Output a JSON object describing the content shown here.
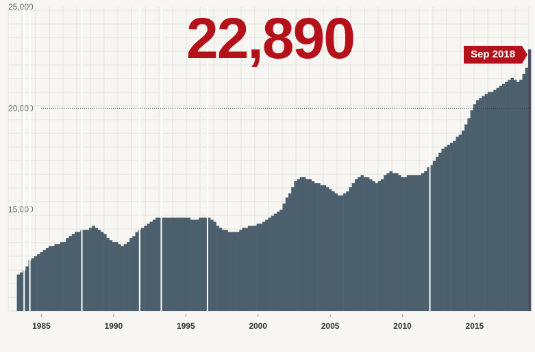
{
  "headline_value": "22,890",
  "latest_label": "Sep 2018",
  "colors": {
    "bar": "#4c5f6d",
    "accent": "#b5111b",
    "grid": "#e4e2dc",
    "background": "#f7f6f2"
  },
  "chart_data": {
    "type": "bar",
    "title": "",
    "xlabel": "",
    "ylabel": "",
    "ylim": [
      10000,
      25000
    ],
    "yticks": [
      {
        "value": 25000,
        "label": "25,000"
      },
      {
        "value": 20000,
        "label": "20,000"
      },
      {
        "value": 15000,
        "label": "15,000"
      }
    ],
    "xticks": [
      {
        "value": 1985,
        "label": "1985"
      },
      {
        "value": 1990,
        "label": "1990"
      },
      {
        "value": 1995,
        "label": "1995"
      },
      {
        "value": 2000,
        "label": "2000"
      },
      {
        "value": 2005,
        "label": "2005"
      },
      {
        "value": 2010,
        "label": "2010"
      },
      {
        "value": 2015,
        "label": "2015"
      }
    ],
    "xlim": [
      1982.7,
      2018.8
    ],
    "reference_line": {
      "value": 20000,
      "style": "dotted"
    },
    "grid": true,
    "gaps": [
      1983.8,
      1984.2,
      1987.8,
      1991.8,
      1993.3,
      1996.5,
      2011.9
    ],
    "series": [
      {
        "points": [
          [
            1983.3,
            11800
          ],
          [
            1983.6,
            11900
          ],
          [
            1983.8,
            12000
          ],
          [
            1984.0,
            12400
          ],
          [
            1984.4,
            12600
          ],
          [
            1984.7,
            12800
          ],
          [
            1985.0,
            13000
          ],
          [
            1985.5,
            13200
          ],
          [
            1986.0,
            13300
          ],
          [
            1986.5,
            13400
          ],
          [
            1987.0,
            13800
          ],
          [
            1987.5,
            13900
          ],
          [
            1987.8,
            14000
          ],
          [
            1988.0,
            14000
          ],
          [
            1988.5,
            14200
          ],
          [
            1989.0,
            14000
          ],
          [
            1989.5,
            13600
          ],
          [
            1990.0,
            13400
          ],
          [
            1990.5,
            13200
          ],
          [
            1991.0,
            13500
          ],
          [
            1991.5,
            13900
          ],
          [
            1992.0,
            14100
          ],
          [
            1992.5,
            14400
          ],
          [
            1993.0,
            14600
          ],
          [
            1993.5,
            14600
          ],
          [
            1994.0,
            14600
          ],
          [
            1995.0,
            14600
          ],
          [
            1995.5,
            14500
          ],
          [
            1996.0,
            14600
          ],
          [
            1996.5,
            14600
          ],
          [
            1997.0,
            14300
          ],
          [
            1997.5,
            14000
          ],
          [
            1998.0,
            13900
          ],
          [
            1998.5,
            13900
          ],
          [
            1999.0,
            14100
          ],
          [
            1999.5,
            14200
          ],
          [
            2000.0,
            14300
          ],
          [
            2000.5,
            14500
          ],
          [
            2001.0,
            14700
          ],
          [
            2001.5,
            15000
          ],
          [
            2002.0,
            15700
          ],
          [
            2002.5,
            16400
          ],
          [
            2003.0,
            16600
          ],
          [
            2003.5,
            16500
          ],
          [
            2004.0,
            16300
          ],
          [
            2004.5,
            16200
          ],
          [
            2005.0,
            15900
          ],
          [
            2005.5,
            15700
          ],
          [
            2006.0,
            15800
          ],
          [
            2006.5,
            16300
          ],
          [
            2007.0,
            16700
          ],
          [
            2007.5,
            16600
          ],
          [
            2008.0,
            16300
          ],
          [
            2008.5,
            16500
          ],
          [
            2009.0,
            16900
          ],
          [
            2009.5,
            16800
          ],
          [
            2010.0,
            16600
          ],
          [
            2010.5,
            16700
          ],
          [
            2011.0,
            16700
          ],
          [
            2011.5,
            16900
          ],
          [
            2012.0,
            17300
          ],
          [
            2012.5,
            17800
          ],
          [
            2013.0,
            18200
          ],
          [
            2013.5,
            18400
          ],
          [
            2014.0,
            18800
          ],
          [
            2014.5,
            19500
          ],
          [
            2015.0,
            20400
          ],
          [
            2015.5,
            20600
          ],
          [
            2016.0,
            20800
          ],
          [
            2016.5,
            21000
          ],
          [
            2017.0,
            21300
          ],
          [
            2017.5,
            21500
          ],
          [
            2018.0,
            21200
          ],
          [
            2018.5,
            22000
          ],
          [
            2018.7,
            22890
          ]
        ]
      }
    ]
  }
}
